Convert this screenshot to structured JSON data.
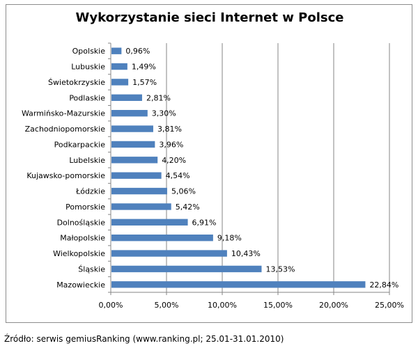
{
  "chart_data": {
    "type": "bar",
    "orientation": "horizontal",
    "title": "Wykorzystanie  sieci Internet w Polsce",
    "categories": [
      "Opolskie",
      "Lubuskie",
      "Świetokrzyskie",
      "Podlaskie",
      "Warmińsko-Mazurskie",
      "Zachodniopomorskie",
      "Podkarpackie",
      "Lubelskie",
      "Kujawsko-pomorskie",
      "Łódzkie",
      "Pomorskie",
      "Dolnośląskie",
      "Małopolskie",
      "Wielkopolskie",
      "Śląskie",
      "Mazowieckie"
    ],
    "values": [
      0.96,
      1.49,
      1.57,
      2.81,
      3.3,
      3.81,
      3.96,
      4.2,
      4.54,
      5.06,
      5.42,
      6.91,
      9.18,
      10.43,
      13.53,
      22.84
    ],
    "value_labels": [
      "0,96%",
      "1,49%",
      "1,57%",
      "2,81%",
      "3,30%",
      "3,81%",
      "3,96%",
      "4,20%",
      "4,54%",
      "5,06%",
      "5,42%",
      "6,91%",
      "9,18%",
      "10,43%",
      "13,53%",
      "22,84%"
    ],
    "xlim": [
      0,
      25
    ],
    "xticks": [
      0,
      5,
      10,
      15,
      20,
      25
    ],
    "xtick_labels": [
      "0,00%",
      "5,00%",
      "10,00%",
      "15,00%",
      "20,00%",
      "25,00%"
    ],
    "grid": "vertical",
    "bar_color": "#4f81bd",
    "legend": "none"
  },
  "source_note": "Źródło: serwis gemiusRanking  (www.ranking.pl;  25.01-31.01.2010)"
}
